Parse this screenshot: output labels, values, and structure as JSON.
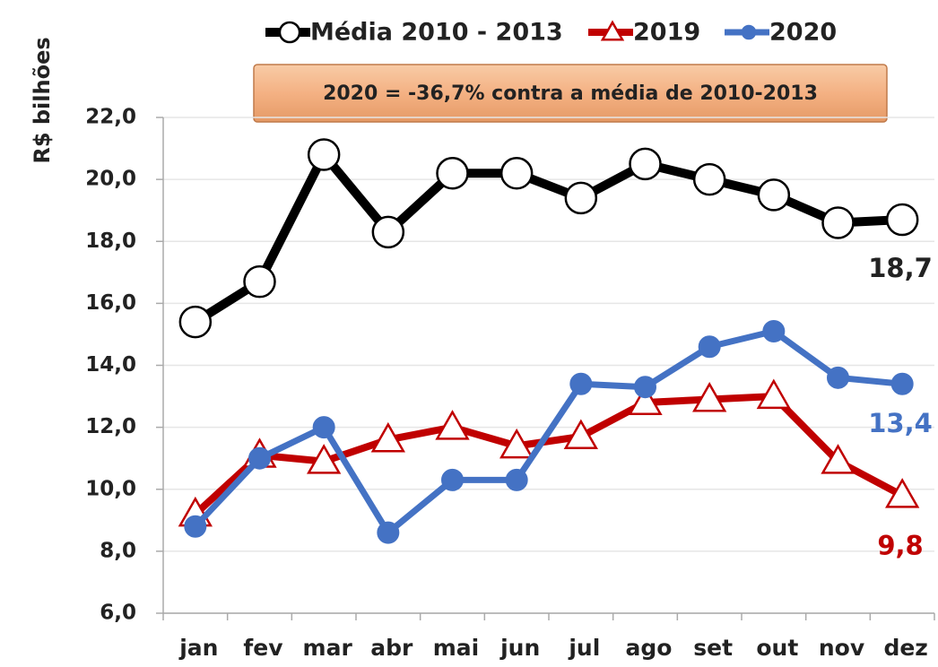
{
  "chart_data": {
    "type": "line",
    "y_label": "R$ bilhões",
    "annotation": "2020 = -36,7% contra a média de 2010-2013",
    "categories": [
      "jan",
      "fev",
      "mar",
      "abr",
      "mai",
      "jun",
      "jul",
      "ago",
      "set",
      "out",
      "nov",
      "dez"
    ],
    "ylim": [
      6,
      22
    ],
    "yticks": [
      {
        "value": 6,
        "label": "6,0"
      },
      {
        "value": 8,
        "label": "8,0"
      },
      {
        "value": 10,
        "label": "10,0"
      },
      {
        "value": 12,
        "label": "12,0"
      },
      {
        "value": 14,
        "label": "14,0"
      },
      {
        "value": 16,
        "label": "16,0"
      },
      {
        "value": 18,
        "label": "18,0"
      },
      {
        "value": 20,
        "label": "20,0"
      },
      {
        "value": 22,
        "label": "22,0"
      }
    ],
    "grid": true,
    "series": [
      {
        "name": "Média 2010 - 2013",
        "color": "#000000",
        "marker": "circle-open",
        "values": [
          15.4,
          16.7,
          20.8,
          18.3,
          20.2,
          20.2,
          19.4,
          20.5,
          20.0,
          19.5,
          18.6,
          18.7
        ],
        "value_labels": [
          null,
          null,
          null,
          null,
          null,
          null,
          null,
          null,
          null,
          null,
          null,
          "18,7"
        ]
      },
      {
        "name": "2019",
        "color": "#c00000",
        "marker": "triangle-open",
        "values": [
          9.2,
          11.1,
          10.9,
          11.6,
          12.0,
          11.4,
          11.7,
          12.8,
          12.9,
          13.0,
          10.9,
          9.8
        ],
        "value_labels": [
          null,
          null,
          null,
          null,
          null,
          null,
          null,
          null,
          null,
          null,
          null,
          "9,8"
        ]
      },
      {
        "name": "2020",
        "color": "#4472c4",
        "marker": "circle",
        "values": [
          8.8,
          11.0,
          12.0,
          8.6,
          10.3,
          10.3,
          13.4,
          13.3,
          14.6,
          15.1,
          13.6,
          13.4
        ],
        "value_labels": [
          null,
          null,
          null,
          null,
          null,
          null,
          null,
          null,
          null,
          null,
          null,
          "13,4"
        ]
      }
    ]
  }
}
